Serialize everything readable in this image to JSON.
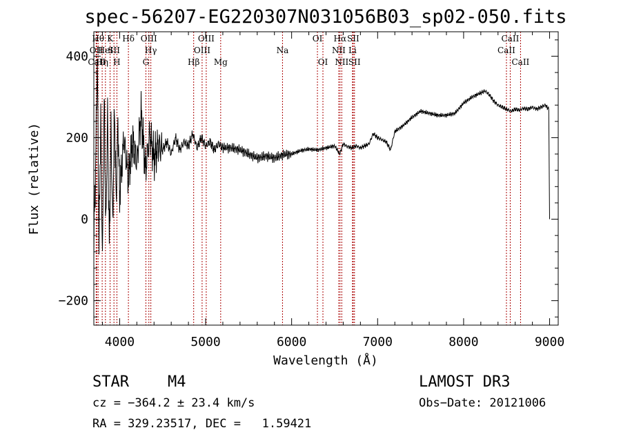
{
  "chart_data": {
    "type": "line",
    "title": "spec-56207-EG220307N031056B03_sp02-050.fits",
    "xlabel": "Wavelength (Å)",
    "ylabel": "Flux (relative)",
    "xlim": [
      3700,
      9100
    ],
    "ylim": [
      -260,
      460
    ],
    "xticks": [
      4000,
      5000,
      6000,
      7000,
      8000,
      9000
    ],
    "yticks": [
      -200,
      0,
      200,
      400
    ],
    "line_color": "#000000",
    "marker_color": "#aa0000",
    "spectrum": {
      "x": [
        3700,
        3720,
        3740,
        3760,
        3780,
        3800,
        3820,
        3840,
        3860,
        3880,
        3900,
        3920,
        3940,
        3960,
        3980,
        4000,
        4050,
        4100,
        4150,
        4200,
        4250,
        4300,
        4350,
        4400,
        4450,
        4500,
        4550,
        4600,
        4650,
        4700,
        4750,
        4800,
        4850,
        4900,
        4950,
        5000,
        5050,
        5100,
        5150,
        5200,
        5300,
        5400,
        5500,
        5600,
        5700,
        5800,
        5900,
        6000,
        6100,
        6200,
        6300,
        6400,
        6500,
        6560,
        6600,
        6650,
        6700,
        6750,
        6800,
        6850,
        6900,
        6950,
        7000,
        7050,
        7100,
        7150,
        7200,
        7300,
        7400,
        7500,
        7600,
        7700,
        7800,
        7900,
        8000,
        8100,
        8200,
        8250,
        8300,
        8350,
        8400,
        8450,
        8500,
        8550,
        8600,
        8650,
        8700,
        8750,
        8800,
        8850,
        8900,
        8950,
        8990,
        9000
      ],
      "y": [
        -50,
        120,
        400,
        -60,
        250,
        -100,
        300,
        -30,
        260,
        -60,
        220,
        -20,
        270,
        40,
        240,
        60,
        200,
        100,
        190,
        140,
        260,
        120,
        210,
        150,
        180,
        170,
        190,
        160,
        200,
        170,
        190,
        180,
        210,
        175,
        200,
        180,
        190,
        170,
        185,
        175,
        175,
        170,
        160,
        150,
        155,
        150,
        158,
        160,
        168,
        172,
        170,
        175,
        180,
        160,
        185,
        178,
        175,
        180,
        175,
        180,
        185,
        210,
        200,
        195,
        190,
        170,
        215,
        230,
        250,
        265,
        260,
        255,
        255,
        260,
        285,
        300,
        310,
        315,
        305,
        290,
        280,
        275,
        270,
        265,
        270,
        268,
        272,
        270,
        275,
        270,
        275,
        280,
        270,
        0
      ]
    },
    "emission_lines": [
      {
        "label": "OII",
        "wavelength": 3727,
        "row": 2
      },
      {
        "label": "CaII",
        "wavelength": 3734,
        "row": 3
      },
      {
        "label": "Hθ",
        "wavelength": 3750,
        "row": 1
      },
      {
        "label": "Hη",
        "wavelength": 3797,
        "row": 3
      },
      {
        "label": "HeI",
        "wavelength": 3835,
        "row": 2
      },
      {
        "label": "K",
        "wavelength": 3889,
        "row": 1
      },
      {
        "label": "SII",
        "wavelength": 3934,
        "row": 2
      },
      {
        "label": "H",
        "wavelength": 3968,
        "row": 3
      },
      {
        "label": "Hδ",
        "wavelength": 4102,
        "row": 1
      },
      {
        "label": "OIII",
        "wavelength": 4340,
        "row": 1
      },
      {
        "label": "Hγ",
        "wavelength": 4363,
        "row": 2
      },
      {
        "label": "G",
        "wavelength": 4305,
        "row": 3
      },
      {
        "label": "Hβ",
        "wavelength": 4861,
        "row": 3
      },
      {
        "label": "OIII",
        "wavelength": 5007,
        "row": 1
      },
      {
        "label": "OIII",
        "wavelength": 4959,
        "row": 2
      },
      {
        "label": "Mg",
        "wavelength": 5175,
        "row": 3
      },
      {
        "label": "Na",
        "wavelength": 5894,
        "row": 2
      },
      {
        "label": "OI",
        "wavelength": 6300,
        "row": 1
      },
      {
        "label": "OI",
        "wavelength": 6364,
        "row": 3
      },
      {
        "label": "Hα",
        "wavelength": 6563,
        "row": 1
      },
      {
        "label": "NII",
        "wavelength": 6548,
        "row": 2
      },
      {
        "label": "NII",
        "wavelength": 6583,
        "row": 3
      },
      {
        "label": "SII",
        "wavelength": 6716,
        "row": 1
      },
      {
        "label": "Li",
        "wavelength": 6708,
        "row": 2
      },
      {
        "label": "SII",
        "wavelength": 6731,
        "row": 3
      },
      {
        "label": "CaII",
        "wavelength": 8542,
        "row": 1
      },
      {
        "label": "CaII",
        "wavelength": 8498,
        "row": 2
      },
      {
        "label": "CaII",
        "wavelength": 8662,
        "row": 3
      }
    ]
  },
  "info": {
    "class": "STAR",
    "subclass": "M4",
    "survey": "LAMOST DR3",
    "cz": "cz = −364.2 ± 23.4 km/s",
    "obsdate": "Obs−Date: 20121006",
    "radec": "RA = 329.23517, DEC =   1.59421"
  }
}
